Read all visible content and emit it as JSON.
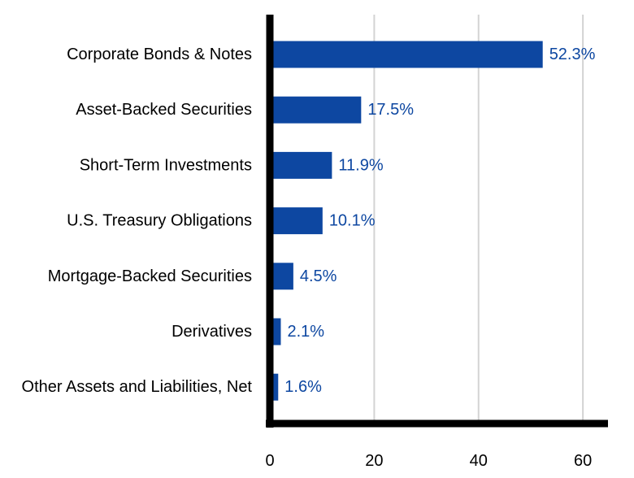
{
  "chart_data": {
    "type": "bar",
    "orientation": "horizontal",
    "title": "",
    "xlabel": "",
    "ylabel": "",
    "categories": [
      "Corporate Bonds & Notes",
      "Asset-Backed Securities",
      "Short-Term Investments",
      "U.S. Treasury Obligations",
      "Mortgage-Backed Securities",
      "Derivatives",
      "Other Assets and Liabilities, Net"
    ],
    "values": [
      52.3,
      17.5,
      11.9,
      10.1,
      4.5,
      2.1,
      1.6
    ],
    "value_labels": [
      "52.3%",
      "17.5%",
      "11.9%",
      "10.1%",
      "4.5%",
      "2.1%",
      "1.6%"
    ],
    "xlim": [
      0,
      65
    ],
    "xticks": [
      0,
      20,
      40,
      60
    ],
    "xtick_labels": [
      "0",
      "20",
      "40",
      "60"
    ],
    "grid": true,
    "legend": "none",
    "colors": {
      "bar": "#0d47a1",
      "value_label": "#0d47a1",
      "axis": "#000000",
      "grid": "#d3d3d3"
    }
  }
}
